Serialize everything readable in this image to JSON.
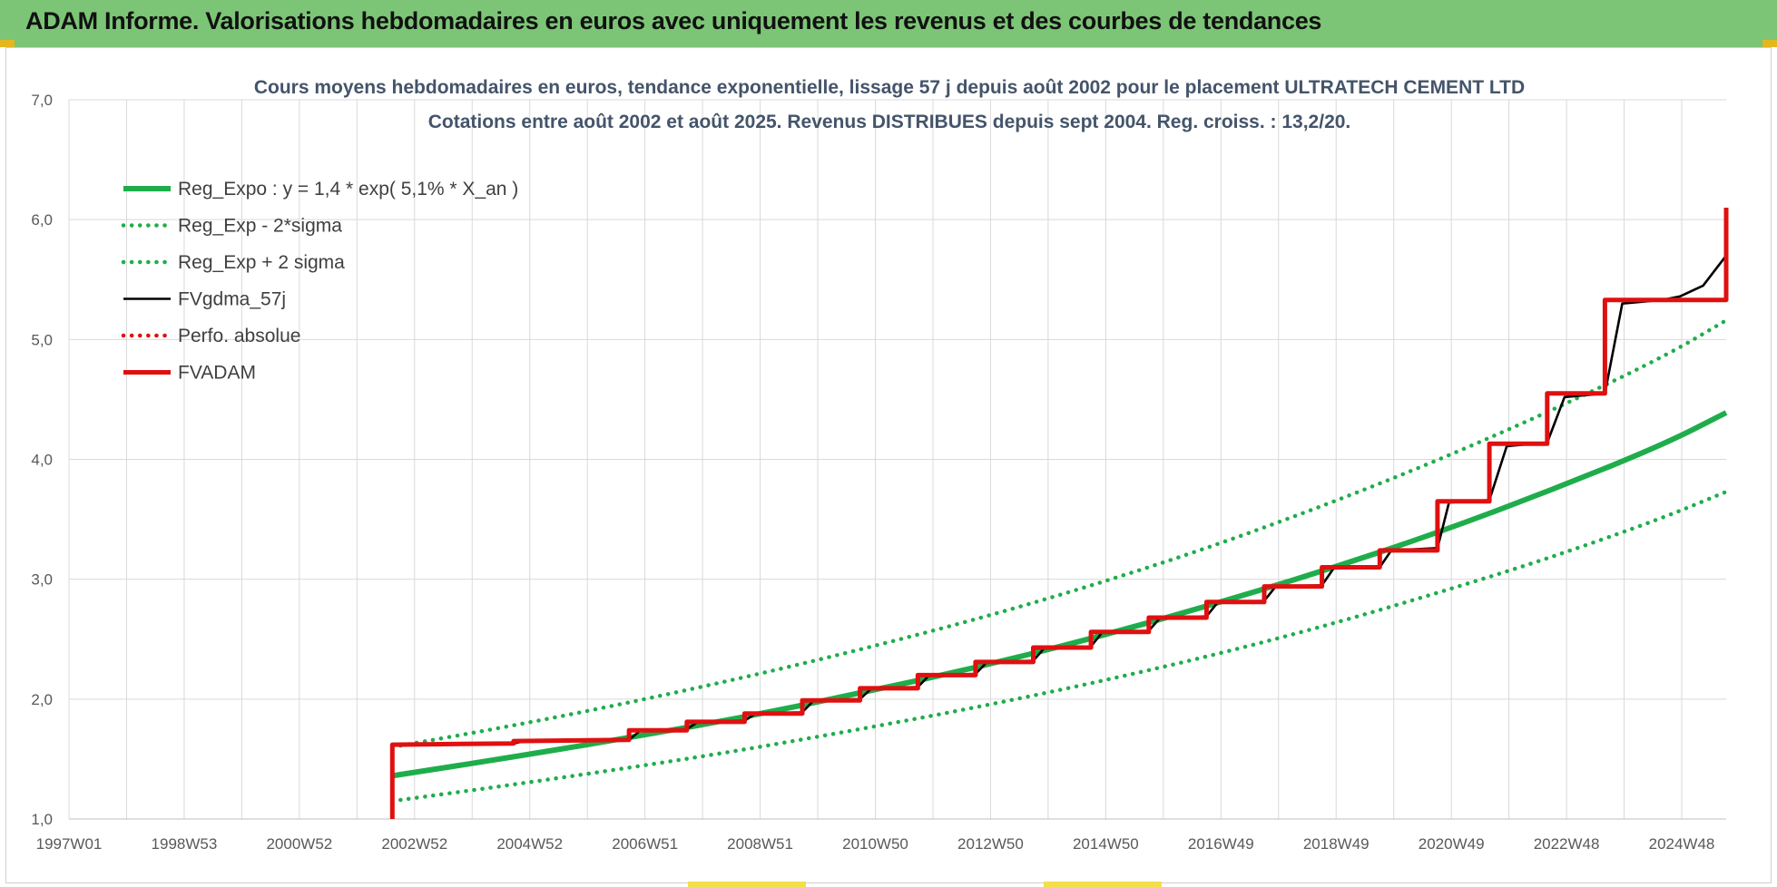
{
  "banner": {
    "title": "ADAM Informe. Valorisations hebdomadaires en euros avec uniquement les revenus et des courbes de tendances"
  },
  "colors": {
    "banner_bg": "#7cc576",
    "trend_green": "#1fad4b",
    "black": "#000000",
    "red": "#e01010",
    "grid": "#d9d9d9"
  },
  "chart_data": {
    "type": "line",
    "title": "Cours moyens hebdomadaires en euros, tendance exponentielle, lissage 57 j depuis août 2002 pour le placement ULTRATECH CEMENT LTD",
    "subtitle": "Cotations entre août 2002 et août 2025. Revenus DISTRIBUES depuis sept 2004. Reg. croiss. : 13,2/20.",
    "xlabel": "",
    "ylabel": "",
    "ylim": [
      1.0,
      7.0
    ],
    "xlim": [
      1997.0,
      2025.7
    ],
    "grid": true,
    "legend_position": "top-left",
    "y_ticks": [
      "7,0",
      "6,0",
      "5,0",
      "4,0",
      "3,0",
      "2,0",
      "1,0"
    ],
    "x_ticks": [
      "1997W01",
      "1998W53",
      "2000W52",
      "2002W52",
      "2004W52",
      "2006W51",
      "2008W51",
      "2010W50",
      "2012W50",
      "2014W50",
      "2016W49",
      "2018W49",
      "2020W49",
      "2022W48",
      "2024W48"
    ],
    "series": [
      {
        "name": "Reg_Expo : y = 1,4 * exp( 5,1% *  X_an )",
        "style": "solid-thick",
        "color": "#1fad4b",
        "x": [
          2002.6,
          2004.6,
          2006.6,
          2008.6,
          2010.6,
          2012.6,
          2014.6,
          2016.6,
          2018.6,
          2020.6,
          2022.6,
          2024.6,
          2025.7
        ],
        "y": [
          1.36,
          1.51,
          1.67,
          1.84,
          2.04,
          2.25,
          2.49,
          2.76,
          3.05,
          3.37,
          3.73,
          4.12,
          4.39
        ]
      },
      {
        "name": "Reg_Exp - 2*sigma",
        "style": "dotted",
        "color": "#1fad4b",
        "x": [
          2002.6,
          2004.6,
          2006.6,
          2008.6,
          2010.6,
          2012.6,
          2014.6,
          2016.6,
          2018.6,
          2020.6,
          2022.6,
          2024.6,
          2025.7
        ],
        "y": [
          1.15,
          1.28,
          1.42,
          1.57,
          1.74,
          1.92,
          2.12,
          2.34,
          2.59,
          2.87,
          3.17,
          3.51,
          3.73
        ]
      },
      {
        "name": "Reg_Exp + 2 sigma",
        "style": "dotted",
        "color": "#1fad4b",
        "x": [
          2002.6,
          2004.6,
          2006.6,
          2008.6,
          2010.6,
          2012.6,
          2014.6,
          2016.6,
          2018.6,
          2020.6,
          2022.6,
          2024.6,
          2025.7
        ],
        "y": [
          1.6,
          1.77,
          1.96,
          2.17,
          2.4,
          2.65,
          2.93,
          3.24,
          3.59,
          3.97,
          4.39,
          4.85,
          5.16
        ]
      },
      {
        "name": "FVgdma_57j",
        "style": "solid",
        "color": "#000000",
        "x": [
          2002.6,
          2004.7,
          2004.9,
          2006.7,
          2006.9,
          2007.7,
          2007.9,
          2008.7,
          2008.9,
          2009.7,
          2009.9,
          2010.7,
          2010.9,
          2011.7,
          2011.9,
          2012.7,
          2012.9,
          2013.7,
          2013.9,
          2014.7,
          2014.9,
          2015.7,
          2015.9,
          2016.7,
          2016.9,
          2017.7,
          2017.9,
          2018.7,
          2018.9,
          2019.7,
          2019.9,
          2020.7,
          2020.9,
          2021.6,
          2021.9,
          2022.6,
          2022.9,
          2023.6,
          2023.9,
          2024.6,
          2024.9,
          2025.3,
          2025.7
        ],
        "y": [
          1.62,
          1.63,
          1.65,
          1.66,
          1.74,
          1.75,
          1.81,
          1.82,
          1.88,
          1.89,
          1.99,
          2.0,
          2.09,
          2.1,
          2.2,
          2.21,
          2.31,
          2.32,
          2.43,
          2.44,
          2.56,
          2.57,
          2.68,
          2.69,
          2.81,
          2.82,
          2.94,
          2.95,
          3.09,
          3.1,
          3.24,
          3.26,
          3.64,
          3.66,
          4.11,
          4.14,
          4.52,
          4.55,
          5.3,
          5.33,
          5.36,
          5.45,
          5.7
        ]
      },
      {
        "name": "Perfo. absolue",
        "style": "dotted",
        "color": "#e01010",
        "x": [],
        "y": []
      },
      {
        "name": "FVADAM",
        "style": "solid-thick-step",
        "color": "#e01010",
        "x": [
          2002.6,
          2002.6,
          2004.7,
          2004.7,
          2006.7,
          2006.7,
          2007.7,
          2007.7,
          2008.7,
          2008.7,
          2009.7,
          2009.7,
          2010.7,
          2010.7,
          2011.7,
          2011.7,
          2012.7,
          2012.7,
          2013.7,
          2013.7,
          2014.7,
          2014.7,
          2015.7,
          2015.7,
          2016.7,
          2016.7,
          2017.7,
          2017.7,
          2018.7,
          2018.7,
          2019.7,
          2019.7,
          2020.7,
          2020.7,
          2021.6,
          2021.6,
          2022.6,
          2022.6,
          2023.6,
          2023.6,
          2024.6,
          2024.6,
          2025.7,
          2025.7
        ],
        "y": [
          1.0,
          1.62,
          1.63,
          1.65,
          1.66,
          1.74,
          1.74,
          1.81,
          1.81,
          1.88,
          1.88,
          1.99,
          1.99,
          2.09,
          2.09,
          2.2,
          2.2,
          2.31,
          2.31,
          2.43,
          2.43,
          2.56,
          2.56,
          2.68,
          2.68,
          2.81,
          2.81,
          2.94,
          2.94,
          3.1,
          3.1,
          3.24,
          3.24,
          3.65,
          3.65,
          4.13,
          4.13,
          4.55,
          4.55,
          5.33,
          5.33,
          5.33,
          5.33,
          6.1
        ]
      }
    ]
  }
}
